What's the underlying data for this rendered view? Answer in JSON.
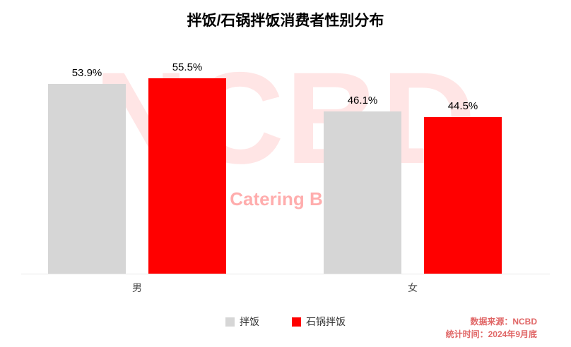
{
  "title": "拌饭/石锅拌饭消费者性别分布",
  "watermark": {
    "line1": "NCBD",
    "line2": "New Catering Big Data"
  },
  "chart_data": {
    "type": "bar",
    "title": "拌饭/石锅拌饭消费者性别分布",
    "categories": [
      "男",
      "女"
    ],
    "series": [
      {
        "name": "拌饭",
        "color": "#d6d6d6",
        "values": [
          53.9,
          46.1
        ]
      },
      {
        "name": "石锅拌饭",
        "color": "#ff0000",
        "values": [
          55.5,
          44.5
        ]
      }
    ],
    "value_suffix": "%",
    "xlabel": "",
    "ylabel": "",
    "ylim": [
      0,
      60
    ],
    "grid": false,
    "legend_position": "bottom"
  },
  "footer": {
    "source": "数据来源：NCBD",
    "time": "统计时间：2024年9月底"
  },
  "colors": {
    "bar_gray": "#d6d6d6",
    "bar_red": "#ff0000",
    "footer_text": "#e06666",
    "baseline": "#e8e8e8",
    "watermark_red": "#ff0000"
  }
}
